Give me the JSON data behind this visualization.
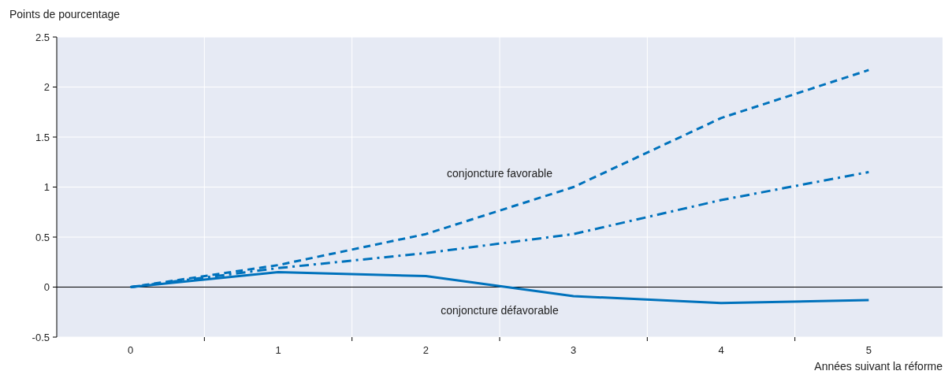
{
  "chart_data": {
    "type": "line",
    "ylabel": "Points de pourcentage",
    "xlabel": "Années suivant la réforme",
    "categories": [
      "0",
      "1",
      "2",
      "3",
      "4",
      "5"
    ],
    "series": [
      {
        "color": "#0072bc",
        "line_style": "dashed",
        "values": [
          0,
          0.22,
          0.53,
          1.0,
          1.69,
          2.17
        ]
      },
      {
        "color": "#0072bc",
        "line_style": "dashdot",
        "values": [
          0,
          0.19,
          0.34,
          0.53,
          0.87,
          1.15
        ]
      },
      {
        "color": "#0072bc",
        "line_style": "solid",
        "values": [
          0,
          0.15,
          0.11,
          -0.09,
          -0.16,
          -0.13
        ]
      }
    ],
    "ylim": [
      -0.5,
      2.5
    ],
    "yticks": [
      -0.5,
      0,
      0.5,
      1,
      1.5,
      2,
      2.5
    ],
    "grid": true,
    "marker": "none",
    "annotations": [
      "conjoncture favorable",
      "conjoncture défavorable"
    ]
  }
}
